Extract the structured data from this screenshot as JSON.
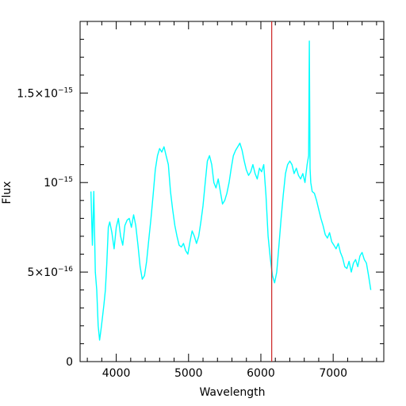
{
  "chart_data": {
    "type": "line",
    "title": "",
    "xlabel": "Wavelength",
    "ylabel": "Flux",
    "xlim": [
      3500,
      7700
    ],
    "ylim": [
      0,
      1.9e-15
    ],
    "grid": false,
    "x_ticks": [
      {
        "value": 4000,
        "label": "4000"
      },
      {
        "value": 5000,
        "label": "5000"
      },
      {
        "value": 6000,
        "label": "6000"
      },
      {
        "value": 7000,
        "label": "7000"
      }
    ],
    "y_ticks": [
      {
        "value": 0,
        "mant": "0",
        "exp": ""
      },
      {
        "value": 5e-16,
        "mant": "5×10",
        "exp": "−16"
      },
      {
        "value": 1e-15,
        "mant": "10",
        "exp": "−15"
      },
      {
        "value": 1.5e-15,
        "mant": "1.5×10",
        "exp": "−15"
      }
    ],
    "series": [
      {
        "color": "#00ffff",
        "x": [
          3650,
          3670,
          3690,
          3710,
          3730,
          3750,
          3770,
          3790,
          3810,
          3830,
          3850,
          3870,
          3890,
          3910,
          3940,
          3970,
          4000,
          4030,
          4060,
          4090,
          4120,
          4150,
          4180,
          4210,
          4240,
          4270,
          4300,
          4330,
          4360,
          4390,
          4420,
          4450,
          4480,
          4510,
          4540,
          4570,
          4600,
          4630,
          4660,
          4690,
          4720,
          4750,
          4780,
          4810,
          4840,
          4870,
          4900,
          4930,
          4960,
          4990,
          5020,
          5050,
          5080,
          5110,
          5140,
          5170,
          5200,
          5230,
          5260,
          5290,
          5320,
          5350,
          5380,
          5410,
          5440,
          5470,
          5500,
          5530,
          5560,
          5590,
          5620,
          5650,
          5680,
          5710,
          5740,
          5770,
          5800,
          5830,
          5860,
          5890,
          5920,
          5950,
          5980,
          6010,
          6040,
          6070,
          6100,
          6130,
          6160,
          6190,
          6220,
          6250,
          6280,
          6310,
          6340,
          6370,
          6400,
          6430,
          6460,
          6490,
          6520,
          6550,
          6580,
          6610,
          6640,
          6660,
          6670,
          6680,
          6690,
          6710,
          6740,
          6770,
          6800,
          6830,
          6860,
          6890,
          6920,
          6950,
          6980,
          7010,
          7040,
          7070,
          7100,
          7130,
          7160,
          7190,
          7220,
          7250,
          7280,
          7310,
          7340,
          7370,
          7400,
          7430,
          7460,
          7490,
          7520
        ],
        "y": [
          9.5e-16,
          6.5e-16,
          9.5e-16,
          5e-16,
          4e-16,
          2e-16,
          1.2e-16,
          1.8e-16,
          2.5e-16,
          3.2e-16,
          4e-16,
          5.5e-16,
          7.5e-16,
          7.8e-16,
          7.2e-16,
          6.3e-16,
          7.5e-16,
          8e-16,
          7e-16,
          6.5e-16,
          7.6e-16,
          7.9e-16,
          8e-16,
          7.5e-16,
          8.2e-16,
          7.6e-16,
          6.5e-16,
          5.3e-16,
          4.6e-16,
          4.8e-16,
          5.6e-16,
          6.8e-16,
          8e-16,
          9.3e-16,
          1.07e-15,
          1.15e-15,
          1.19e-15,
          1.17e-15,
          1.2e-15,
          1.15e-15,
          1.1e-15,
          9.5e-16,
          8.5e-16,
          7.6e-16,
          7e-16,
          6.5e-16,
          6.4e-16,
          6.6e-16,
          6.2e-16,
          6e-16,
          6.7e-16,
          7.3e-16,
          7e-16,
          6.6e-16,
          7e-16,
          7.8e-16,
          8.7e-16,
          1e-15,
          1.12e-15,
          1.15e-15,
          1.1e-15,
          1e-15,
          9.7e-16,
          1.02e-15,
          9.5e-16,
          8.8e-16,
          9e-16,
          9.4e-16,
          1e-15,
          1.08e-15,
          1.15e-15,
          1.18e-15,
          1.2e-15,
          1.22e-15,
          1.18e-15,
          1.12e-15,
          1.07e-15,
          1.04e-15,
          1.06e-15,
          1.1e-15,
          1.05e-15,
          1.02e-15,
          1.08e-15,
          1.06e-15,
          1.1e-15,
          9.3e-16,
          7e-16,
          5.8e-16,
          4.8e-16,
          4.4e-16,
          5e-16,
          6.5e-16,
          8e-16,
          9.3e-16,
          1.05e-15,
          1.1e-15,
          1.12e-15,
          1.1e-15,
          1.05e-15,
          1.08e-15,
          1.04e-15,
          1.02e-15,
          1.05e-15,
          1e-15,
          1.1e-15,
          1.15e-15,
          1.79e-15,
          1.08e-15,
          1e-15,
          9.5e-16,
          9.4e-16,
          9e-16,
          8.5e-16,
          8e-16,
          7.6e-16,
          7.1e-16,
          6.9e-16,
          7.2e-16,
          6.7e-16,
          6.5e-16,
          6.3e-16,
          6.6e-16,
          6.1e-16,
          5.8e-16,
          5.3e-16,
          5.2e-16,
          5.6e-16,
          5e-16,
          5.5e-16,
          5.7e-16,
          5.3e-16,
          5.9e-16,
          6.1e-16,
          5.7e-16,
          5.5e-16,
          4.8e-16,
          4e-16
        ]
      }
    ],
    "marker_line": {
      "x": 6150,
      "color": "#cc2222"
    }
  }
}
